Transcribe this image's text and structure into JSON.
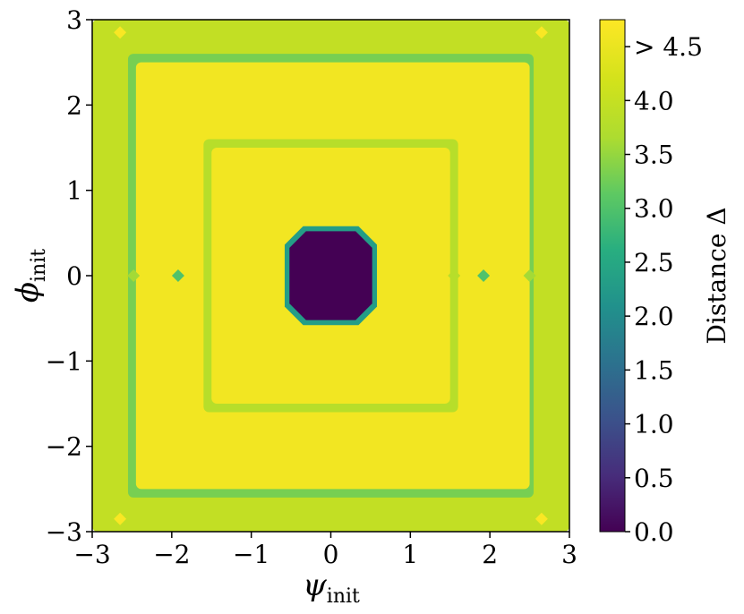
{
  "chart_data": {
    "type": "heatmap",
    "subtype": "filled-contour",
    "title": "",
    "xlabel": {
      "symbol": "ψ",
      "sub": "init"
    },
    "ylabel": {
      "symbol": "ϕ",
      "sub": "init"
    },
    "xlim": [
      -3,
      3
    ],
    "ylim": [
      -3,
      3
    ],
    "xticks": [
      -3,
      -2,
      -1,
      0,
      1,
      2,
      3
    ],
    "xtick_labels": [
      "−3",
      "−2",
      "−1",
      "0",
      "1",
      "2",
      "3"
    ],
    "yticks": [
      -3,
      -2,
      -1,
      0,
      1,
      2,
      3
    ],
    "ytick_labels": [
      "−3",
      "−2",
      "−1",
      "0",
      "1",
      "2",
      "3"
    ],
    "colormap": "viridis",
    "colorbar": {
      "label": "Distance Δ",
      "range": [
        0,
        4.75
      ],
      "ticks": [
        0.0,
        0.5,
        1.0,
        1.5,
        2.0,
        2.5,
        3.0,
        3.5,
        4.0,
        4.5
      ],
      "tick_labels": [
        "0.0",
        "0.5",
        "1.0",
        "1.5",
        "2.0",
        "2.5",
        "3.0",
        "3.5",
        "4.0",
        "> 4.5"
      ]
    },
    "regions": [
      {
        "name": "outer-frame",
        "level": 3.95,
        "x": [
          -3,
          3
        ],
        "y": [
          -3,
          3
        ]
      },
      {
        "name": "outer-band",
        "level": 3.3,
        "x": [
          -2.55,
          2.55
        ],
        "y": [
          -2.6,
          2.6
        ]
      },
      {
        "name": "outer-plateau",
        "level": 4.6,
        "x": [
          -2.45,
          2.5
        ],
        "y": [
          -2.5,
          2.5
        ]
      },
      {
        "name": "inner-ring",
        "level": 3.8,
        "x": [
          -1.6,
          1.6
        ],
        "y": [
          -1.6,
          1.6
        ]
      },
      {
        "name": "inner-plateau",
        "level": 4.6,
        "x": [
          -1.5,
          1.5
        ],
        "y": [
          -1.5,
          1.5
        ]
      },
      {
        "name": "center-rim",
        "level": 2.3,
        "x": [
          -0.58,
          0.58
        ],
        "y": [
          -0.58,
          0.58
        ]
      },
      {
        "name": "center-minimum",
        "level": 0.0,
        "x": [
          -0.52,
          0.52
        ],
        "y": [
          -0.52,
          0.52
        ]
      }
    ],
    "point_features": [
      {
        "x": -2.48,
        "y": 0,
        "level": 3.6
      },
      {
        "x": -1.92,
        "y": 0,
        "level": 3.0
      },
      {
        "x": 1.55,
        "y": 0,
        "level": 3.8
      },
      {
        "x": 1.92,
        "y": 0,
        "level": 3.0
      },
      {
        "x": 2.5,
        "y": 0,
        "level": 3.6
      },
      {
        "x": -2.65,
        "y": 2.85,
        "level": 4.7
      },
      {
        "x": 2.65,
        "y": 2.85,
        "level": 4.7
      },
      {
        "x": -2.65,
        "y": -2.85,
        "level": 4.7
      },
      {
        "x": 2.65,
        "y": -2.85,
        "level": 4.7
      }
    ]
  }
}
